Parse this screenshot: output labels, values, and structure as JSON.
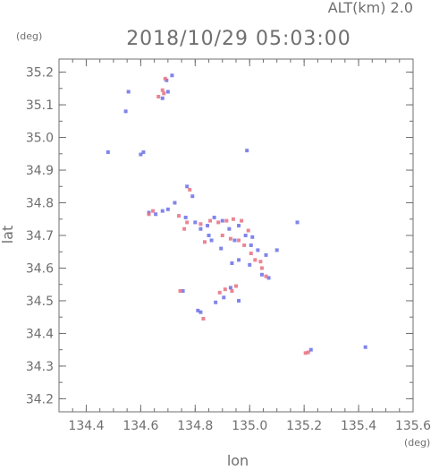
{
  "header": {
    "altitude_label": "ALT(km) 2.0",
    "timestamp": "2018/10/29 05:03:00"
  },
  "chart_data": {
    "type": "scatter",
    "title": "2018/10/29 05:03:00",
    "subtitle": "ALT(km) 2.0",
    "xlabel": "lon",
    "ylabel": "lat",
    "x_unit": "(deg)",
    "y_unit": "(deg)",
    "xlim": [
      134.3,
      135.6
    ],
    "ylim": [
      34.16,
      35.24
    ],
    "x_ticks": [
      "134.4",
      "134.6",
      "134.8",
      "135.0",
      "135.2",
      "135.4",
      "135.6"
    ],
    "y_ticks": [
      "34.2",
      "34.3",
      "34.4",
      "34.5",
      "34.6",
      "34.7",
      "34.8",
      "34.9",
      "35.0",
      "35.1",
      "35.2"
    ],
    "grid": false,
    "colors": {
      "positive": "#e87080",
      "negative": "#6a70e8",
      "axis": "#6f6f6f"
    },
    "series": [
      {
        "color_key": "negative",
        "points": [
          [
            134.555,
            35.14
          ],
          [
            134.545,
            35.08
          ],
          [
            134.61,
            34.955
          ],
          [
            134.6,
            34.948
          ],
          [
            134.48,
            34.955
          ],
          [
            134.63,
            34.77
          ],
          [
            134.655,
            34.765
          ],
          [
            134.68,
            34.775
          ],
          [
            134.7,
            34.78
          ],
          [
            134.725,
            34.8
          ],
          [
            134.77,
            34.85
          ],
          [
            134.79,
            34.82
          ],
          [
            134.765,
            34.755
          ],
          [
            134.8,
            34.74
          ],
          [
            134.82,
            34.72
          ],
          [
            134.845,
            34.73
          ],
          [
            134.87,
            34.755
          ],
          [
            134.9,
            34.745
          ],
          [
            134.925,
            34.72
          ],
          [
            134.96,
            34.73
          ],
          [
            134.985,
            34.7
          ],
          [
            135.005,
            34.67
          ],
          [
            135.03,
            34.655
          ],
          [
            135.06,
            34.64
          ],
          [
            134.86,
            34.685
          ],
          [
            134.895,
            34.66
          ],
          [
            134.935,
            34.615
          ],
          [
            134.96,
            34.625
          ],
          [
            135.0,
            34.61
          ],
          [
            135.045,
            34.58
          ],
          [
            135.07,
            34.57
          ],
          [
            134.93,
            34.54
          ],
          [
            134.905,
            34.51
          ],
          [
            134.875,
            34.495
          ],
          [
            134.81,
            34.47
          ],
          [
            134.82,
            34.465
          ],
          [
            134.755,
            34.53
          ],
          [
            135.425,
            34.358
          ],
          [
            135.225,
            34.35
          ],
          [
            135.175,
            34.74
          ],
          [
            135.1,
            34.655
          ],
          [
            134.99,
            34.96
          ],
          [
            134.715,
            35.19
          ],
          [
            134.695,
            35.175
          ],
          [
            134.7,
            35.14
          ],
          [
            134.68,
            35.12
          ],
          [
            134.96,
            34.5
          ],
          [
            134.85,
            34.7
          ],
          [
            134.945,
            34.685
          ],
          [
            135.01,
            34.695
          ]
        ]
      },
      {
        "color_key": "positive",
        "points": [
          [
            134.69,
            35.18
          ],
          [
            134.685,
            35.135
          ],
          [
            134.645,
            34.775
          ],
          [
            134.63,
            34.765
          ],
          [
            134.74,
            34.76
          ],
          [
            134.77,
            34.74
          ],
          [
            134.82,
            34.735
          ],
          [
            134.855,
            34.745
          ],
          [
            134.885,
            34.74
          ],
          [
            134.915,
            34.745
          ],
          [
            134.94,
            34.75
          ],
          [
            134.97,
            34.745
          ],
          [
            134.9,
            34.7
          ],
          [
            134.93,
            34.69
          ],
          [
            134.96,
            34.685
          ],
          [
            134.98,
            34.67
          ],
          [
            135.005,
            34.645
          ],
          [
            135.04,
            34.62
          ],
          [
            135.045,
            34.6
          ],
          [
            135.02,
            34.625
          ],
          [
            134.91,
            34.535
          ],
          [
            134.89,
            34.525
          ],
          [
            134.935,
            34.53
          ],
          [
            134.95,
            34.545
          ],
          [
            134.83,
            34.445
          ],
          [
            135.215,
            34.342
          ],
          [
            135.205,
            34.34
          ],
          [
            134.78,
            34.84
          ],
          [
            134.76,
            34.72
          ],
          [
            135.06,
            34.575
          ],
          [
            134.745,
            34.53
          ],
          [
            134.835,
            34.68
          ],
          [
            134.995,
            34.715
          ],
          [
            134.68,
            35.145
          ],
          [
            134.665,
            35.125
          ]
        ]
      }
    ]
  }
}
